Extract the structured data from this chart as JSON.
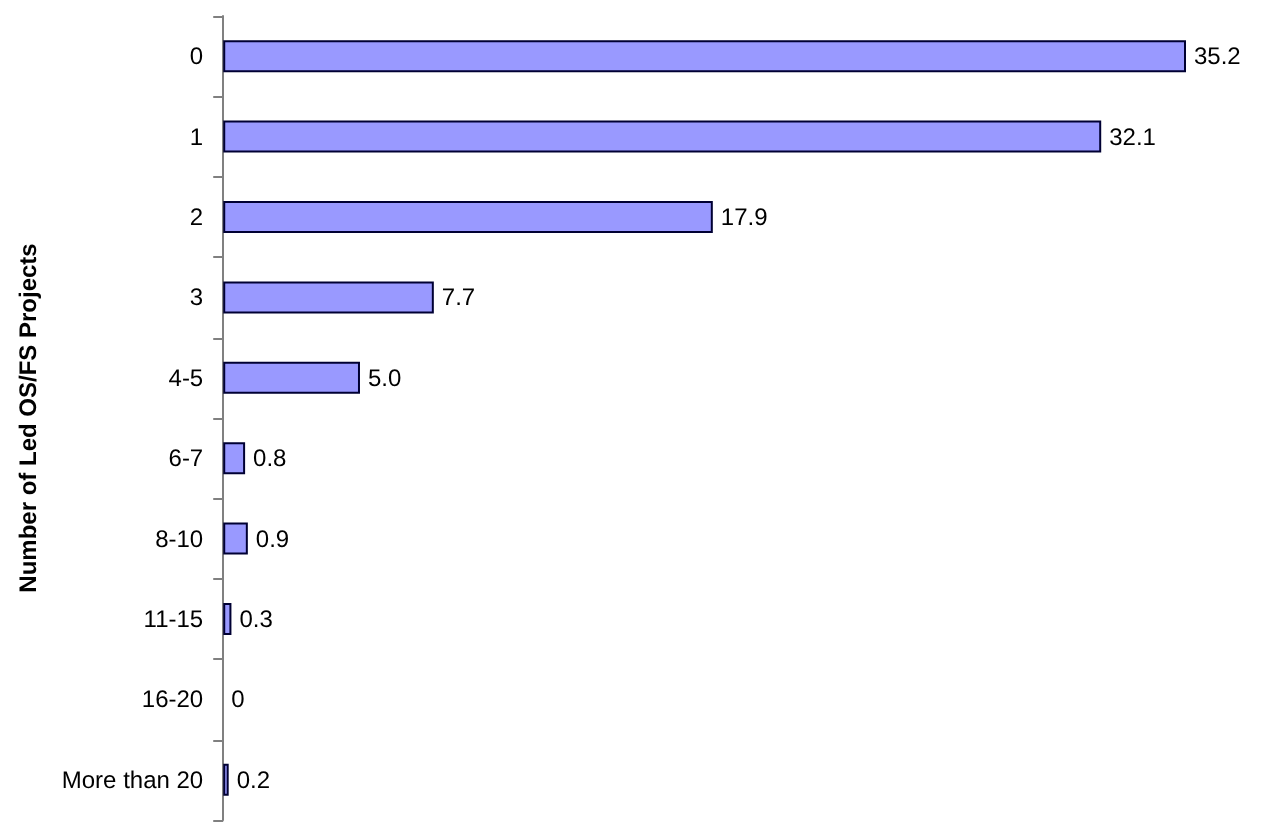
{
  "chart_data": {
    "type": "bar",
    "orientation": "horizontal",
    "ylabel": "Number of Led OS/FS Projects",
    "categories": [
      "0",
      "1",
      "2",
      "3",
      "4-5",
      "6-7",
      "8-10",
      "11-15",
      "16-20",
      "More than 20"
    ],
    "values": [
      35.2,
      32.1,
      17.9,
      7.7,
      5.0,
      0.8,
      0.9,
      0.3,
      0,
      0.2
    ],
    "value_labels": [
      "35.2",
      "32.1",
      "17.9",
      "7.7",
      "5.0",
      "0.8",
      "0.9",
      "0.3",
      "0",
      "0.2"
    ],
    "color": "#9999ff",
    "tick_labels": "y"
  }
}
